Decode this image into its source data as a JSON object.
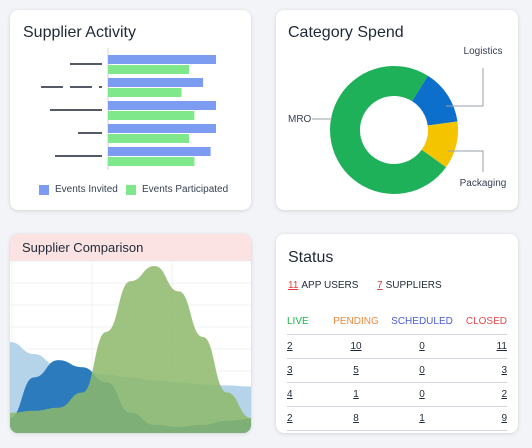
{
  "supplier_activity": {
    "title": "Supplier Activity",
    "legend": [
      {
        "label": "Events Invited",
        "color": "#7b9cf0"
      },
      {
        "label": "Events Participated",
        "color": "#7ee88a"
      }
    ],
    "chart_data": {
      "type": "bar",
      "orientation": "horizontal",
      "categories": [
        "",
        "",
        "",
        "",
        ""
      ],
      "series": [
        {
          "name": "Events Invited",
          "values": [
            100,
            88,
            100,
            100,
            95
          ]
        },
        {
          "name": "Events Participated",
          "values": [
            75,
            68,
            80,
            75,
            80
          ]
        }
      ],
      "xlim": [
        0,
        100
      ]
    }
  },
  "category_spend": {
    "title": "Category Spend",
    "chart_data": {
      "type": "pie",
      "donut": true,
      "labels": [
        "Logistics",
        "Packaging",
        "MRO"
      ],
      "values": [
        14,
        12,
        74
      ],
      "colors": [
        "#0d6fcc",
        "#f5c400",
        "#1fb15a"
      ]
    }
  },
  "supplier_comparison": {
    "title": "Supplier Comparison",
    "chart_data": {
      "type": "area",
      "x": [
        0,
        1,
        2,
        3,
        4,
        5,
        6,
        7,
        8,
        9,
        10
      ],
      "series": [
        {
          "values": [
            90,
            78,
            66,
            60,
            58,
            55,
            52,
            50,
            48,
            47,
            46
          ],
          "color": "#b5d4ea"
        },
        {
          "values": [
            15,
            55,
            72,
            65,
            50,
            20,
            8,
            6,
            8,
            12,
            14
          ],
          "color": "#2b7bbd"
        },
        {
          "values": [
            20,
            22,
            25,
            40,
            100,
            150,
            165,
            140,
            95,
            40,
            15
          ],
          "color": "#8db86a"
        }
      ]
    }
  },
  "status": {
    "title": "Status",
    "summary": [
      {
        "count": "11",
        "label": "APP USERS"
      },
      {
        "count": "7",
        "label": "SUPPLIERS"
      }
    ],
    "columns": [
      {
        "label": "LIVE",
        "color": "#22b14c"
      },
      {
        "label": "PENDING",
        "color": "#f08a3c"
      },
      {
        "label": "SCHEDULED",
        "color": "#4c5ad8"
      },
      {
        "label": "CLOSED",
        "color": "#e04b4b"
      }
    ],
    "rows": [
      [
        "2",
        "10",
        "0",
        "11"
      ],
      [
        "3",
        "5",
        "0",
        "3"
      ],
      [
        "4",
        "1",
        "0",
        "2"
      ],
      [
        "2",
        "8",
        "1",
        "9"
      ]
    ]
  }
}
